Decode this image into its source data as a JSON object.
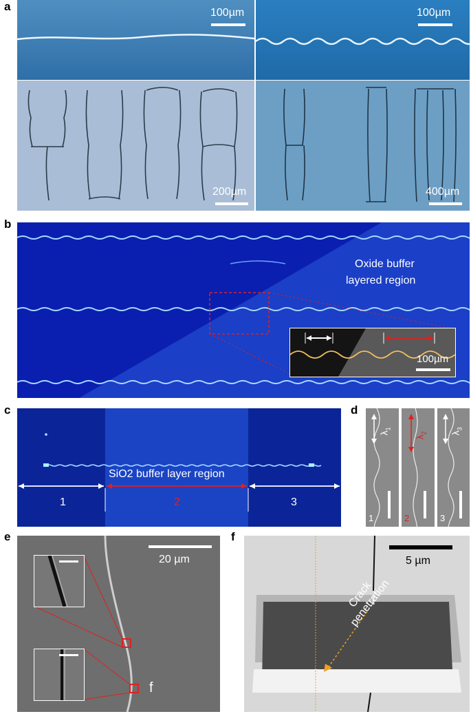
{
  "panel_labels": {
    "a": "a",
    "b": "b",
    "c": "c",
    "d": "d",
    "e": "e",
    "f": "f"
  },
  "panel_a": {
    "scale_top_left": "100µm",
    "scale_top_right": "100µm",
    "scale_bottom_left": "200µm",
    "scale_bottom_right": "400µm"
  },
  "panel_b": {
    "region_line1": "Oxide buffer",
    "region_line2": "layered region",
    "inset_scale": "100µm"
  },
  "panel_c": {
    "region_label": "SiO2 buffer layer region",
    "seg1": "1",
    "seg2": "2",
    "seg3": "3"
  },
  "panel_d": {
    "n1": "1",
    "n2": "2",
    "n3": "3",
    "lambda": "λ",
    "sub1": "1",
    "sub2": "2",
    "sub3": "3"
  },
  "panel_e": {
    "scale": "20  µm",
    "marker": "f"
  },
  "panel_f": {
    "scale": "5  µm",
    "annotation_line1": "Crack",
    "annotation_line2": "penetration"
  },
  "colors": {
    "red": "#e02020",
    "deep_blue": "#0a1fb0",
    "sem_gray": "#6e6e6e"
  }
}
